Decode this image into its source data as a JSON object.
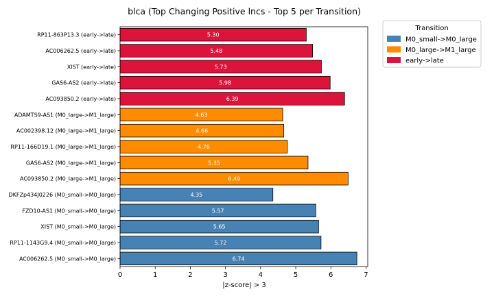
{
  "chart_data": {
    "type": "bar",
    "orientation": "horizontal",
    "title": "blca (Top Changing Positive lncs - Top 5 per Transition)",
    "xlabel": "|z-score| > 3",
    "ylabel": "",
    "xlim": [
      0,
      7.05
    ],
    "xticks": [
      "0",
      "1",
      "2",
      "3",
      "4",
      "5",
      "6",
      "7"
    ],
    "grid": false,
    "legend": {
      "title": "Transition",
      "placement": "outside-top-right",
      "entries": [
        {
          "label": "M0_small->M0_large",
          "color": "#4682b4"
        },
        {
          "label": "M0_large->M1_large",
          "color": "#ff8c00"
        },
        {
          "label": "early->late",
          "color": "#dc143c"
        }
      ]
    },
    "bars": [
      {
        "label": "RP11-863P13.3 (early->late)",
        "value": 5.3,
        "value_label": "5.30",
        "group": "early->late"
      },
      {
        "label": "AC006262.5 (early->late)",
        "value": 5.48,
        "value_label": "5.48",
        "group": "early->late"
      },
      {
        "label": "XIST (early->late)",
        "value": 5.73,
        "value_label": "5.73",
        "group": "early->late"
      },
      {
        "label": "GAS6-AS2 (early->late)",
        "value": 5.98,
        "value_label": "5.98",
        "group": "early->late"
      },
      {
        "label": "AC093850.2 (early->late)",
        "value": 6.39,
        "value_label": "6.39",
        "group": "early->late"
      },
      {
        "label": "ADAMTS9-AS1 (M0_large->M1_large)",
        "value": 4.63,
        "value_label": "4.63",
        "group": "M0_large->M1_large"
      },
      {
        "label": "AC002398.12 (M0_large->M1_large)",
        "value": 4.66,
        "value_label": "4.66",
        "group": "M0_large->M1_large"
      },
      {
        "label": "RP11-166D19.1 (M0_large->M1_large)",
        "value": 4.76,
        "value_label": "4.76",
        "group": "M0_large->M1_large"
      },
      {
        "label": "GAS6-AS2 (M0_large->M1_large)",
        "value": 5.35,
        "value_label": "5.35",
        "group": "M0_large->M1_large"
      },
      {
        "label": "AC093850.2 (M0_large->M1_large)",
        "value": 6.49,
        "value_label": "6.49",
        "group": "M0_large->M1_large"
      },
      {
        "label": "DKFZp434J0226 (M0_small->M0_large)",
        "value": 4.35,
        "value_label": "4.35",
        "group": "M0_small->M0_large"
      },
      {
        "label": "FZD10-AS1 (M0_small->M0_large)",
        "value": 5.57,
        "value_label": "5.57",
        "group": "M0_small->M0_large"
      },
      {
        "label": "XIST (M0_small->M0_large)",
        "value": 5.65,
        "value_label": "5.65",
        "group": "M0_small->M0_large"
      },
      {
        "label": "RP11-1143G9.4 (M0_small->M0_large)",
        "value": 5.72,
        "value_label": "5.72",
        "group": "M0_small->M0_large"
      },
      {
        "label": "AC006262.5 (M0_small->M0_large)",
        "value": 6.74,
        "value_label": "6.74",
        "group": "M0_small->M0_large"
      }
    ]
  }
}
